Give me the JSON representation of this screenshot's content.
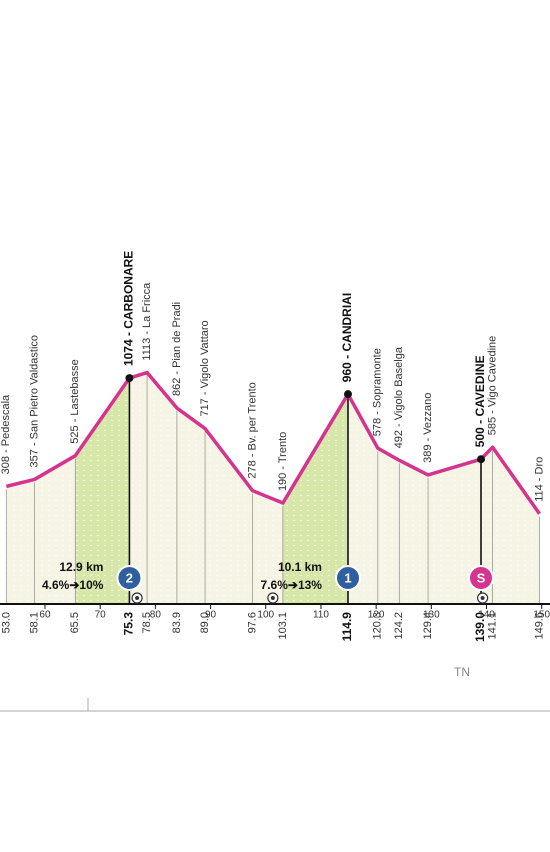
{
  "chart_data": {
    "type": "profile",
    "xlim": [
      51.85,
      151.5
    ],
    "ylim": [
      -524,
      3748
    ],
    "xticks": [
      60,
      70,
      80,
      90,
      100,
      110,
      120,
      130,
      140,
      150
    ],
    "line_color": "#d6338f",
    "climb_color": "#d7e6a9",
    "area_color": "#f6f4e4",
    "waypoints": [
      {
        "km": 53.0,
        "km_label": "53.0",
        "elevation": 308,
        "label": "308 - Pedescala"
      },
      {
        "km": 58.1,
        "km_label": "58.1",
        "elevation": 357,
        "label": "357 - San Pietro Valdastico"
      },
      {
        "km": 65.5,
        "km_label": "65.5",
        "elevation": 525,
        "label": "525 - Lastebasse"
      },
      {
        "km": 75.3,
        "km_label": "75.3",
        "elevation": 1074,
        "label": "1074 - CARBONARE"
      },
      {
        "km": 78.5,
        "km_label": "78.5",
        "elevation": 1113,
        "label": "1113 - La Fricca"
      },
      {
        "km": 83.9,
        "km_label": "83.9",
        "elevation": 862,
        "label": "862 - Pian de Pradi"
      },
      {
        "km": 89.0,
        "km_label": "89.0",
        "elevation": 717,
        "label": "717 - Vigolo Vattaro"
      },
      {
        "km": 97.6,
        "km_label": "97.6",
        "elevation": 278,
        "label": "278 - Bv. per Trento"
      },
      {
        "km": 103.1,
        "km_label": "103.1",
        "elevation": 190,
        "label": "190 - Trento"
      },
      {
        "km": 114.9,
        "km_label": "114.9",
        "elevation": 960,
        "label": "960 - CANDRIAI"
      },
      {
        "km": 120.3,
        "km_label": "120.3",
        "elevation": 578,
        "label": "578 - Sopramonte"
      },
      {
        "km": 124.2,
        "km_label": "124.2",
        "elevation": 492,
        "label": "492 - Vigolo Baselga"
      },
      {
        "km": 129.4,
        "km_label": "129.4",
        "elevation": 389,
        "label": "389 - Vezzano"
      },
      {
        "km": 139.0,
        "km_label": "139.0",
        "elevation": 500,
        "label": "500 - CAVEDINE"
      },
      {
        "km": 141.1,
        "km_label": "141.1",
        "elevation": 585,
        "label": "585 - Vigo Cavedine"
      },
      {
        "km": 149.6,
        "km_label": "149.6",
        "elevation": 114,
        "label": "114 - Dro"
      }
    ],
    "climbs": [
      {
        "badge": "2",
        "color": "#2f5f9e",
        "length": "12.9 km",
        "gradient": "4.6%➔10%"
      },
      {
        "badge": "1",
        "color": "#2f5f9e",
        "length": "10.1 km",
        "gradient": "7.6%➔13%"
      },
      {
        "badge": "S",
        "color": "#d6338f"
      }
    ],
    "region": "TN"
  }
}
